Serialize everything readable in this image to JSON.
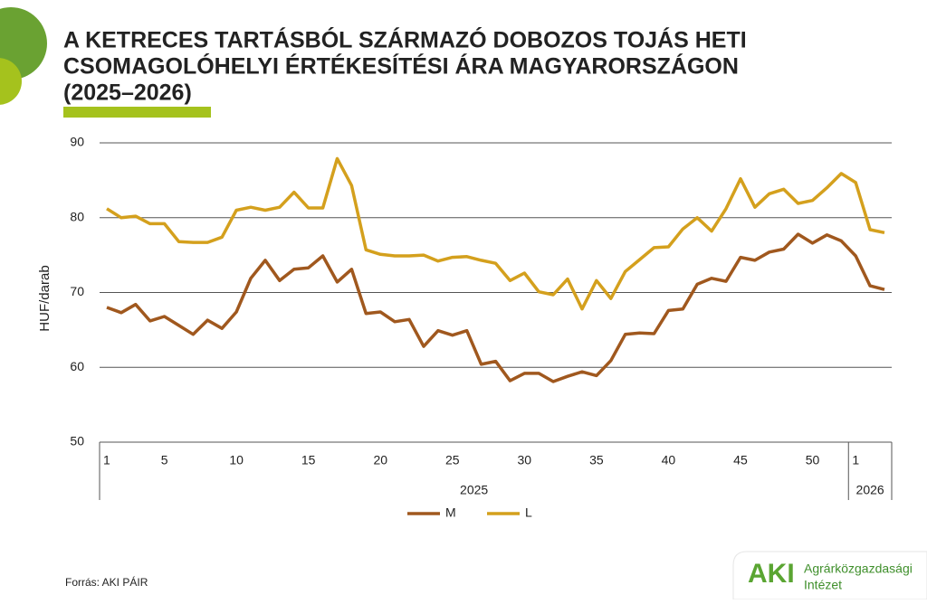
{
  "chart_data": {
    "type": "line",
    "title": [
      "A KETRECES TARTÁSBÓL SZÁRMAZÓ DOBOZOS TOJÁS HETI",
      "CSOMAGOLÓHELYI ÉRTÉKESÍTÉSI ÁRA MAGYARORSZÁGON",
      "(2025–2026)"
    ],
    "y_label": "HUF/darab",
    "categories": [
      "1",
      null,
      null,
      null,
      "5",
      null,
      null,
      null,
      null,
      "10",
      null,
      null,
      null,
      null,
      "15",
      null,
      null,
      null,
      null,
      "20",
      null,
      null,
      null,
      null,
      "25",
      null,
      null,
      null,
      null,
      "30",
      null,
      null,
      null,
      null,
      "35",
      null,
      null,
      null,
      null,
      "40",
      null,
      null,
      null,
      null,
      "45",
      null,
      null,
      null,
      null,
      "50",
      null,
      null,
      "1",
      null,
      null
    ],
    "groups": [
      {
        "name": "2025",
        "count": 52
      },
      {
        "name": "2026",
        "count": 3
      }
    ],
    "series": [
      {
        "name": "M",
        "color": "#a0581e",
        "values": [
          68.0,
          67.3,
          68.4,
          66.2,
          66.8,
          65.6,
          64.4,
          66.3,
          65.2,
          67.4,
          71.9,
          74.3,
          71.6,
          73.1,
          73.3,
          74.9,
          71.4,
          73.1,
          67.2,
          67.4,
          66.1,
          66.4,
          62.8,
          64.9,
          64.3,
          64.9,
          60.4,
          60.8,
          58.2,
          59.2,
          59.2,
          58.1,
          58.8,
          59.4,
          58.9,
          60.9,
          64.4,
          64.6,
          64.5,
          67.6,
          67.8,
          71.1,
          71.9,
          71.5,
          74.7,
          74.3,
          75.4,
          75.8,
          77.8,
          76.6,
          77.7,
          76.9,
          74.9,
          70.9,
          70.4
        ]
      },
      {
        "name": "L",
        "color": "#d4a01d",
        "values": [
          81.2,
          80.0,
          80.2,
          79.2,
          79.2,
          76.8,
          76.7,
          76.7,
          77.4,
          81.0,
          81.4,
          81.0,
          81.4,
          83.4,
          81.3,
          81.3,
          87.9,
          84.3,
          75.7,
          75.1,
          74.9,
          74.9,
          75.0,
          74.2,
          74.7,
          74.8,
          74.3,
          73.9,
          71.6,
          72.6,
          70.1,
          69.7,
          71.8,
          67.8,
          71.6,
          69.2,
          72.8,
          74.4,
          76.0,
          76.1,
          78.5,
          80.0,
          78.2,
          81.2,
          85.2,
          81.4,
          83.2,
          83.8,
          81.9,
          82.3,
          84.0,
          85.9,
          84.7,
          78.4,
          78.0
        ]
      }
    ],
    "ylim": [
      50,
      90
    ],
    "yticks": [
      50,
      60,
      70,
      80,
      90
    ],
    "grid": true,
    "source": "Forrás: AKI PÁIR",
    "logo": {
      "mark": "AKI",
      "lines": [
        "Agrárközgazdasági",
        "Intézet"
      ]
    }
  }
}
